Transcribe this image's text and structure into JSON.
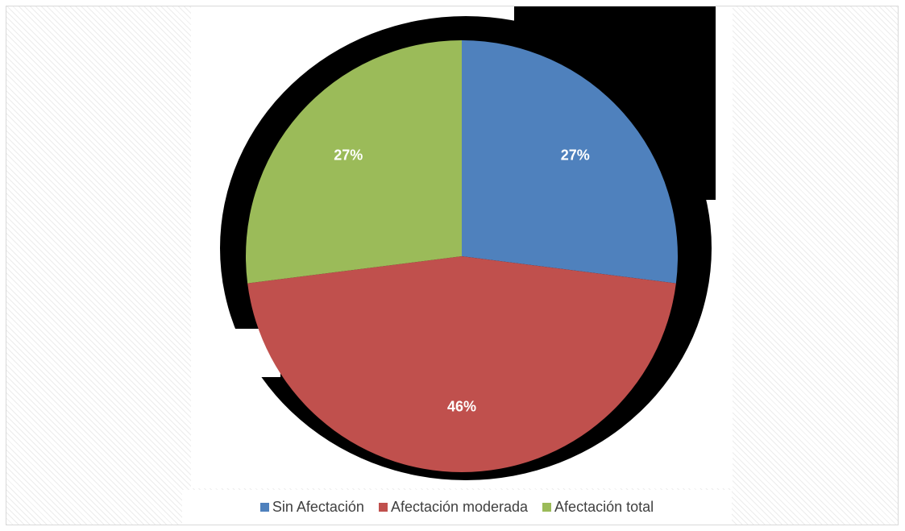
{
  "chart_data": {
    "type": "pie",
    "title": "",
    "categories": [
      "Sin Afectación",
      "Afectación moderada",
      "Afectación total"
    ],
    "values": [
      27,
      46,
      27
    ],
    "labels": [
      "27%",
      "46%",
      "27%"
    ],
    "colors": [
      "#4f81bd",
      "#c0504d",
      "#9bbb59"
    ],
    "legend_position": "bottom",
    "start_angle_deg": 0,
    "direction": "clockwise"
  }
}
